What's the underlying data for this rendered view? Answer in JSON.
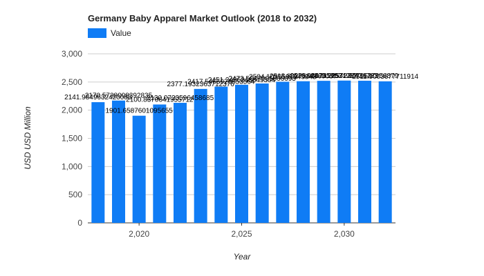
{
  "chart_data": {
    "type": "bar",
    "title": "Germany Baby Apparel Market Outlook (2018 to 2032)",
    "xlabel": "Year",
    "ylabel": "USD USD Million",
    "x": [
      2018,
      2019,
      2020,
      2021,
      2022,
      2023,
      2024,
      2025,
      2026,
      2027,
      2028,
      2029,
      2030,
      2031,
      2032
    ],
    "x_ticks": [
      2020,
      2025,
      2030
    ],
    "x_tick_labels": [
      "2,020",
      "2,025",
      "2,030"
    ],
    "ylim": [
      0,
      3000
    ],
    "y_ticks": [
      0,
      500,
      1000,
      1500,
      2000,
      2500,
      3000
    ],
    "y_tick_labels": [
      "0",
      "500",
      "1,000",
      "1,500",
      "2,000",
      "2,500",
      "3,000"
    ],
    "grid": true,
    "legend_position": "top-left",
    "series": [
      {
        "name": "Value",
        "color": "#0f7cf5",
        "values": [
          2141.98,
          2170.57,
          1901.66,
          2100.84,
          2130.07,
          2377.19,
          2417.55,
          2451.25,
          2473.5,
          2504.1,
          2513.8,
          2520.9,
          2525.3,
          2522.0,
          2511.9
        ],
        "labels": [
          "2141.9849632420083",
          "2170.5738008392835",
          "1901.6587601095655",
          "2100.8370641955712",
          "2130.0723596458685",
          "2377.1932363712376",
          "2417.5465926853564",
          "2451.2486248849304",
          "2473.5047005866693",
          "2504.1039591349943",
          "2513.8027584460037",
          "2520.9447459834957",
          "2525.2857237436783",
          "2521.9670627956879",
          "2511.9003677711914"
        ]
      }
    ]
  }
}
